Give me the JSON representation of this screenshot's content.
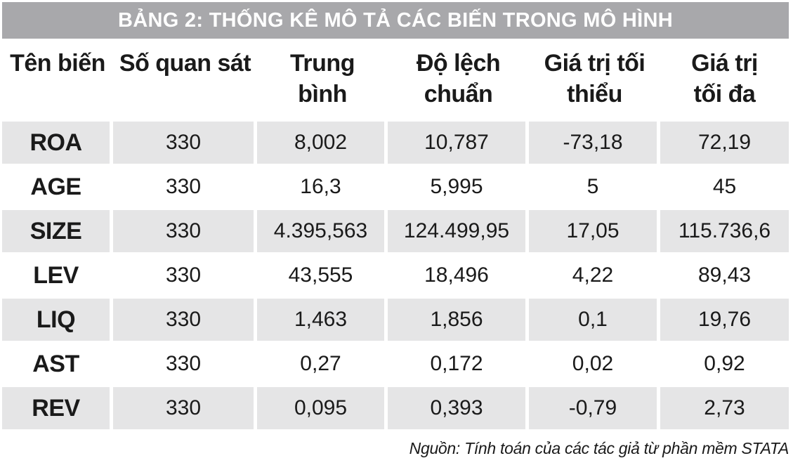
{
  "title": "BẢNG 2: THỐNG KÊ MÔ TẢ CÁC BIẾN TRONG MÔ HÌNH",
  "columns": [
    "Tên biến",
    "Số quan sát",
    "Trung bình",
    "Độ lệch chuẩn",
    "Giá trị tối thiểu",
    "Giá trị tối đa"
  ],
  "rows": [
    [
      "ROA",
      "330",
      "8,002",
      "10,787",
      "-73,18",
      "72,19"
    ],
    [
      "AGE",
      "330",
      "16,3",
      "5,995",
      "5",
      "45"
    ],
    [
      "SIZE",
      "330",
      "4.395,563",
      "124.499,95",
      "17,05",
      "115.736,6"
    ],
    [
      "LEV",
      "330",
      "43,555",
      "18,496",
      "4,22",
      "89,43"
    ],
    [
      "LIQ",
      "330",
      "1,463",
      "1,856",
      "0,1",
      "19,76"
    ],
    [
      "AST",
      "330",
      "0,27",
      "0,172",
      "0,02",
      "0,92"
    ],
    [
      "REV",
      "330",
      "0,095",
      "0,393",
      "-0,79",
      "2,73"
    ]
  ],
  "source_note": "Nguồn: Tính toán của các tác giả từ phần mềm STATA",
  "colors": {
    "title_bg": "#a8a8ab",
    "title_text": "#ffffff",
    "shaded_row": "#e5e5e6",
    "text": "#1a1a1a"
  }
}
